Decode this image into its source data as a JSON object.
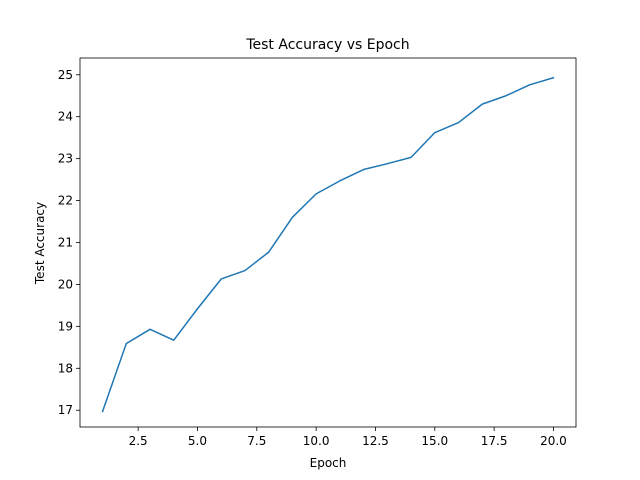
{
  "chart_data": {
    "type": "line",
    "title": "Test Accuracy vs Epoch",
    "xlabel": "Epoch",
    "ylabel": "Test Accuracy",
    "xlim": [
      0.05,
      20.95
    ],
    "ylim": [
      16.6,
      25.4
    ],
    "xticks": [
      "2.5",
      "5.0",
      "7.5",
      "10.0",
      "12.5",
      "15.0",
      "17.5",
      "20.0"
    ],
    "yticks": [
      "17",
      "18",
      "19",
      "20",
      "21",
      "22",
      "23",
      "24",
      "25"
    ],
    "grid": false,
    "line_color": "#1f77b4",
    "series": [
      {
        "x": [
          1,
          2,
          3,
          4,
          5,
          6,
          7,
          8,
          9,
          10,
          11,
          12,
          13,
          14,
          15,
          16,
          17,
          18,
          19,
          20
        ],
        "values": [
          16.97,
          18.59,
          18.93,
          18.67,
          19.42,
          20.13,
          20.33,
          20.77,
          21.6,
          22.16,
          22.47,
          22.74,
          22.88,
          23.03,
          23.62,
          23.86,
          24.3,
          24.5,
          24.76,
          24.93
        ]
      }
    ]
  }
}
